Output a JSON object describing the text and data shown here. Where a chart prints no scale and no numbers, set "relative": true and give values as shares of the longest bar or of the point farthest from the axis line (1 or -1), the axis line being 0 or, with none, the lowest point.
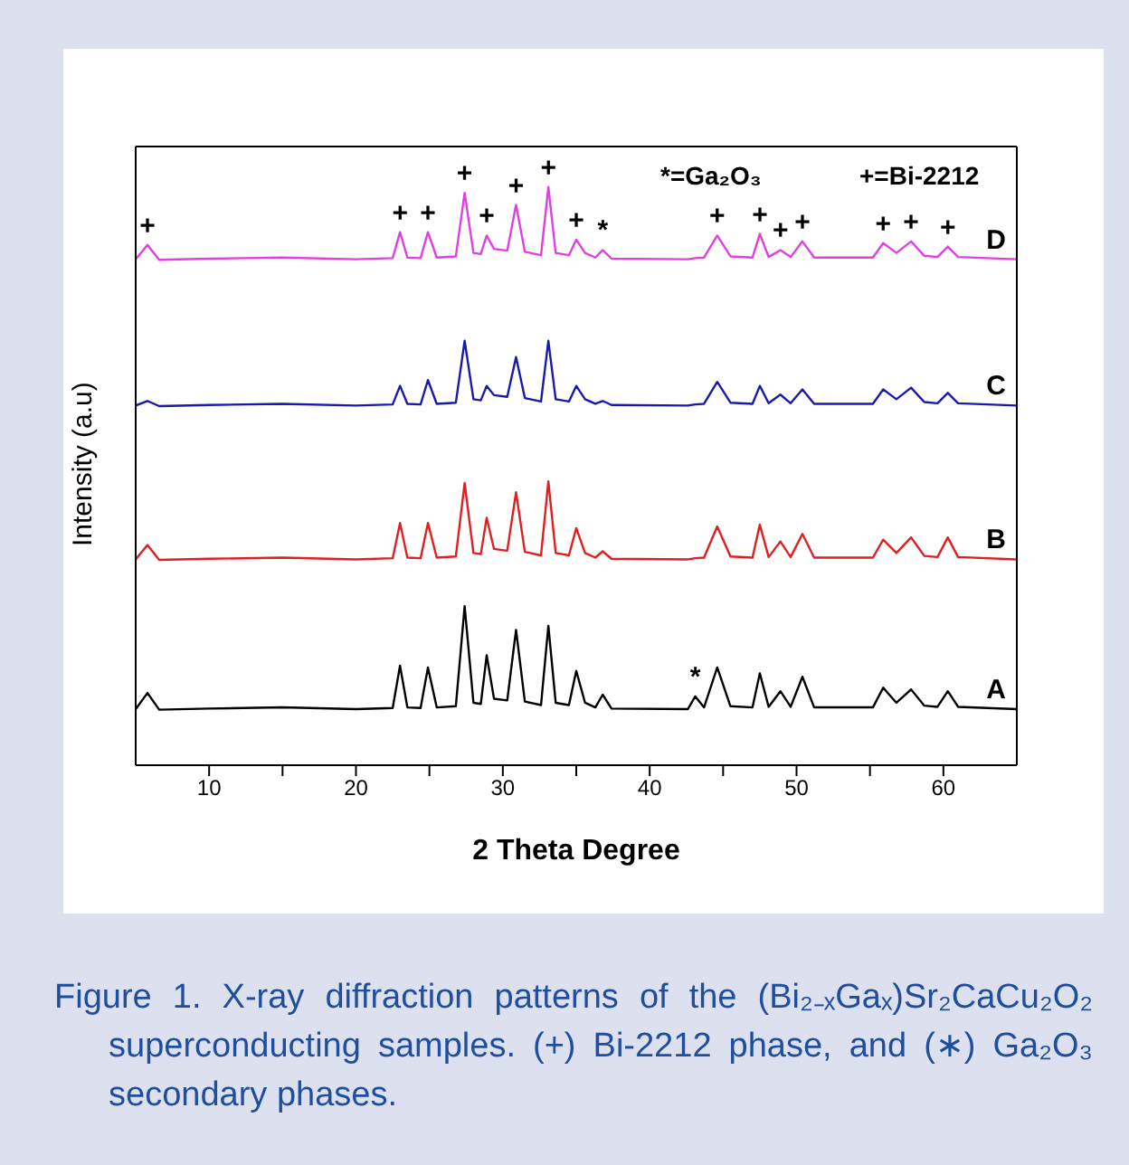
{
  "chart_data": {
    "type": "line",
    "relative": true,
    "xlabel": "2 Theta Degree",
    "ylabel": "Intensity (a.u)",
    "xlim": [
      5,
      65
    ],
    "xticks": [
      10,
      {
        "value": 15,
        "label": null
      },
      20,
      {
        "value": 25,
        "label": null
      },
      30,
      {
        "value": 35,
        "label": null
      },
      40,
      {
        "value": 45,
        "label": null
      },
      50,
      {
        "value": 55,
        "label": null
      },
      60
    ],
    "marker": "none",
    "x": [
      5,
      5.8,
      6.6,
      10,
      15,
      20,
      22.5,
      23.0,
      23.5,
      24.4,
      24.9,
      25.5,
      26.8,
      27.4,
      28.0,
      28.5,
      28.9,
      29.4,
      30.3,
      30.9,
      31.5,
      32.6,
      33.1,
      33.6,
      34.5,
      35.0,
      35.6,
      36.3,
      36.8,
      37.4,
      42.6,
      43.1,
      43.7,
      44.6,
      45.5,
      47.0,
      47.5,
      48.1,
      48.9,
      49.6,
      50.4,
      51.2,
      55.2,
      55.9,
      56.8,
      57.8,
      58.7,
      59.6,
      60.3,
      61.0,
      65
    ],
    "series": [
      {
        "name": "D",
        "color": "#e040e0",
        "values": [
          0.875,
          0.9,
          0.874,
          0.876,
          0.878,
          0.875,
          0.877,
          0.922,
          0.878,
          0.877,
          0.922,
          0.878,
          0.88,
          0.99,
          0.886,
          0.884,
          0.916,
          0.893,
          0.89,
          0.969,
          0.888,
          0.882,
          1,
          0.886,
          0.882,
          0.909,
          0.886,
          0.878,
          0.891,
          0.876,
          0.875,
          0.877,
          0.878,
          0.916,
          0.88,
          0.878,
          0.919,
          0.879,
          0.891,
          0.879,
          0.906,
          0.878,
          0.878,
          0.903,
          0.886,
          0.906,
          0.881,
          0.879,
          0.897,
          0.879,
          0.875
        ]
      },
      {
        "name": "C",
        "color": "#1a1aa8",
        "values": [
          0.622,
          0.63,
          0.621,
          0.623,
          0.625,
          0.622,
          0.624,
          0.656,
          0.625,
          0.624,
          0.666,
          0.625,
          0.627,
          0.734,
          0.633,
          0.631,
          0.656,
          0.64,
          0.637,
          0.706,
          0.635,
          0.629,
          0.734,
          0.633,
          0.629,
          0.656,
          0.633,
          0.625,
          0.63,
          0.623,
          0.622,
          0.624,
          0.625,
          0.663,
          0.627,
          0.625,
          0.656,
          0.626,
          0.641,
          0.626,
          0.65,
          0.625,
          0.625,
          0.65,
          0.633,
          0.653,
          0.628,
          0.626,
          0.644,
          0.626,
          0.622
        ]
      },
      {
        "name": "B",
        "color": "#e02020",
        "values": [
          0.356,
          0.381,
          0.355,
          0.357,
          0.359,
          0.356,
          0.358,
          0.419,
          0.359,
          0.358,
          0.419,
          0.359,
          0.361,
          0.488,
          0.367,
          0.365,
          0.428,
          0.374,
          0.371,
          0.472,
          0.369,
          0.363,
          0.491,
          0.367,
          0.363,
          0.41,
          0.367,
          0.359,
          0.37,
          0.357,
          0.356,
          0.358,
          0.359,
          0.413,
          0.361,
          0.359,
          0.416,
          0.36,
          0.387,
          0.36,
          0.4,
          0.359,
          0.359,
          0.39,
          0.367,
          0.394,
          0.362,
          0.36,
          0.394,
          0.36,
          0.356
        ]
      },
      {
        "name": "A",
        "color": "#000000",
        "values": [
          0.097,
          0.125,
          0.096,
          0.098,
          0.1,
          0.097,
          0.099,
          0.172,
          0.1,
          0.099,
          0.169,
          0.1,
          0.102,
          0.275,
          0.108,
          0.106,
          0.19,
          0.115,
          0.112,
          0.234,
          0.11,
          0.104,
          0.241,
          0.108,
          0.104,
          0.163,
          0.108,
          0.1,
          0.122,
          0.098,
          0.097,
          0.119,
          0.1,
          0.169,
          0.102,
          0.1,
          0.159,
          0.101,
          0.128,
          0.101,
          0.153,
          0.1,
          0.1,
          0.134,
          0.108,
          0.131,
          0.103,
          0.101,
          0.128,
          0.101,
          0.097
        ]
      }
    ],
    "annotations": [
      "*=Ga₂O₃",
      "+=Bi-2212",
      "Figure 1. X-ray diffraction patterns of the (Bi₂₋ₓGaₓ)Sr₂CaCu₂O₂ superconducting samples. (+) Bi-2212 phase, and (∗) Ga₂O₃ secondary phases.",
      {
        "text": "+",
        "x": 5.8,
        "y": 0.9
      },
      {
        "text": "+",
        "x": 23.0,
        "y": 0.922
      },
      {
        "text": "+",
        "x": 24.9,
        "y": 0.922
      },
      {
        "text": "+",
        "x": 27.4,
        "y": 0.99
      },
      {
        "text": "+",
        "x": 28.9,
        "y": 0.916
      },
      {
        "text": "+",
        "x": 30.9,
        "y": 0.969
      },
      {
        "text": "+",
        "x": 33.1,
        "y": 1
      },
      {
        "text": "+",
        "x": 35.0,
        "y": 0.909
      },
      {
        "text": "*",
        "x": 36.8,
        "y": 0.891
      },
      {
        "text": "+",
        "x": 44.6,
        "y": 0.916
      },
      {
        "text": "+",
        "x": 47.5,
        "y": 0.919
      },
      {
        "text": "+",
        "x": 48.9,
        "y": 0.891
      },
      {
        "text": "+",
        "x": 50.4,
        "y": 0.906
      },
      {
        "text": "+",
        "x": 55.9,
        "y": 0.903
      },
      {
        "text": "+",
        "x": 57.8,
        "y": 0.906
      },
      {
        "text": "+",
        "x": 60.3,
        "y": 0.897
      },
      {
        "text": "*",
        "x": 43.1,
        "y": 0.119
      }
    ]
  }
}
